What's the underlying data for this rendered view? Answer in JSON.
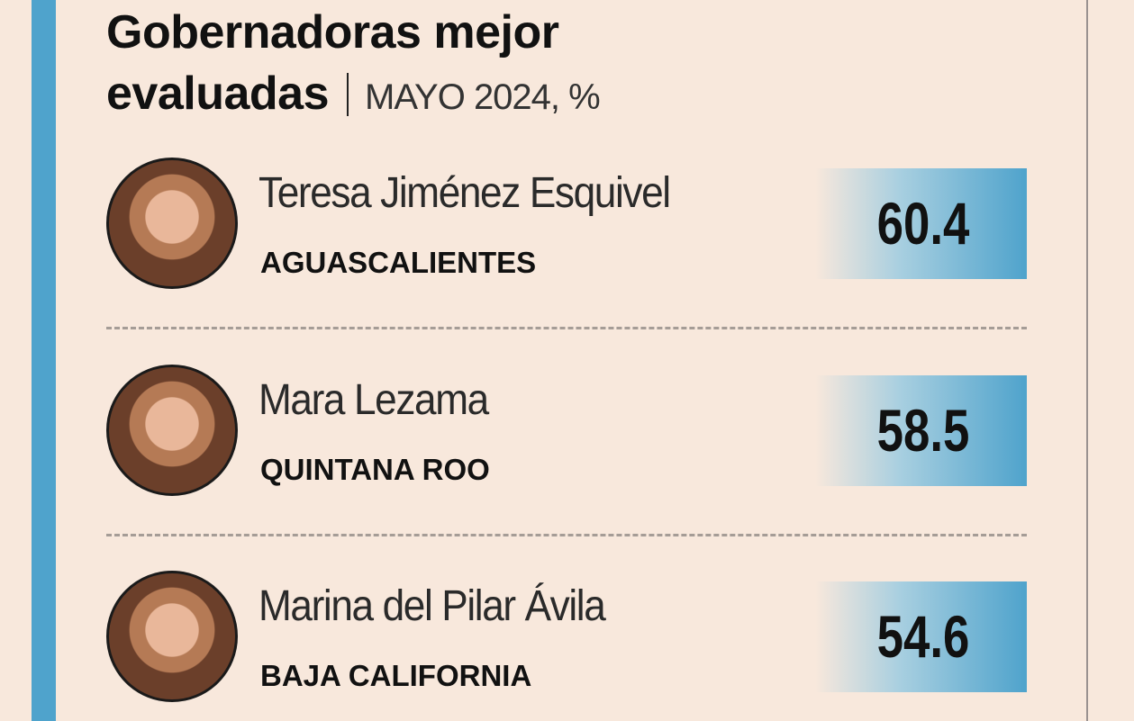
{
  "header": {
    "title": "Gobernadoras mejor evaluadas",
    "subtitle": "MAYO 2024, %"
  },
  "rows": [
    {
      "name": "Teresa Jiménez Esquivel",
      "state": "AGUASCALIENTES",
      "value": 60.4
    },
    {
      "name": "Mara Lezama",
      "state": "QUINTANA ROO",
      "value": 58.5
    },
    {
      "name": "Marina del Pilar Ávila",
      "state": "BAJA CALIFORNIA",
      "value": 54.6
    }
  ]
}
